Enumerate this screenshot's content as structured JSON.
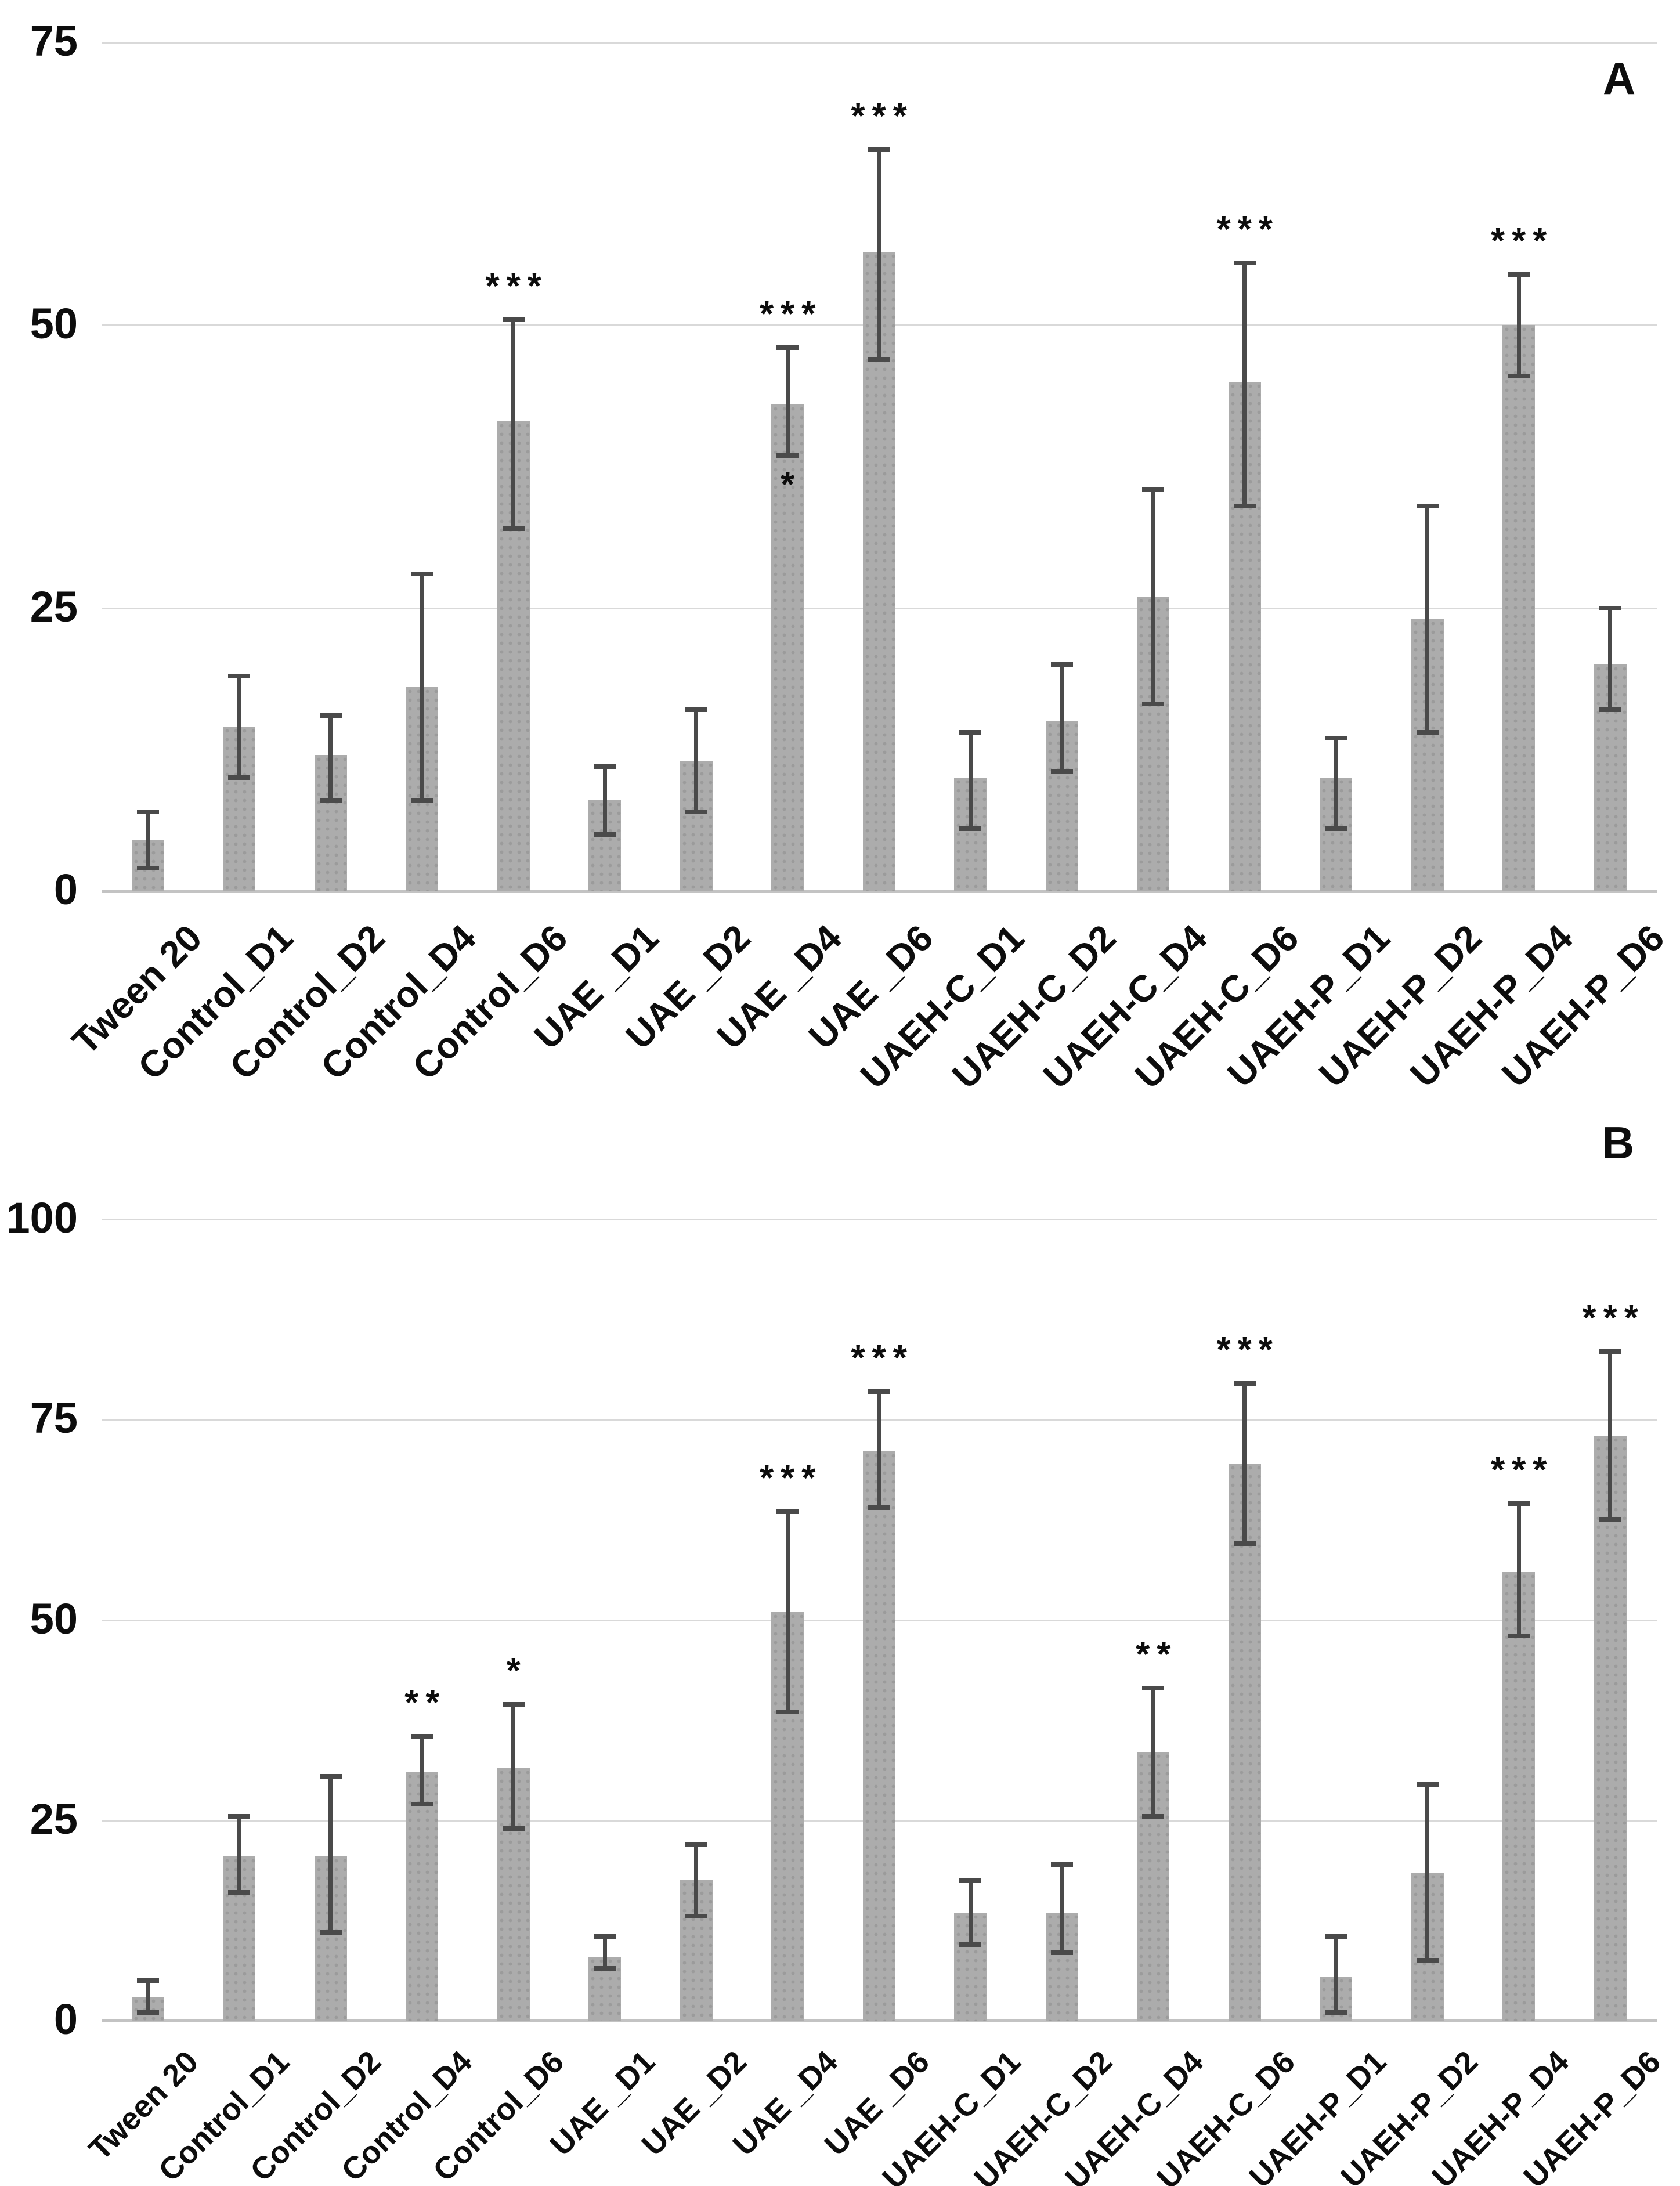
{
  "figure_title": "",
  "panel_letters": {
    "a": "A",
    "b": "B"
  },
  "style": {
    "bar_color": "#acacac",
    "bar_dot_color": "#9b9b9b",
    "error_bar_color": "#4a4a4a",
    "gridline_color": "#d9d9d9",
    "axis_line_color": "#c3c3c3",
    "text_color": "#0d0d0d",
    "background": "#ffffff"
  },
  "chart_data": [
    {
      "type": "bar",
      "panel_label": "A",
      "title": "",
      "xlabel": "",
      "ylabel": "",
      "ylim": [
        0,
        75
      ],
      "yticks": [
        0,
        25,
        50,
        75
      ],
      "ytick_labels": [
        "0",
        "25",
        "50",
        "75"
      ],
      "grid": true,
      "legend": "none",
      "error_bars": "plus-minus",
      "categories": [
        "Tween 20",
        "Control_D1",
        "Control_D2",
        "Control_D4",
        "Control_D6",
        "UAE _D1",
        "UAE _D2",
        "UAE _D4",
        "UAE _D6",
        "UAEH-C_D1",
        "UAEH-C_D2",
        "UAEH-C_D4",
        "UAEH-C_D6",
        "UAEH-P_D1",
        "UAEH-P_D2",
        "UAEH-P_D4",
        "UAEH-P_D6"
      ],
      "values": [
        4.5,
        14.5,
        12,
        18,
        41.5,
        8,
        11.5,
        43,
        56.5,
        10,
        15,
        26,
        45,
        10,
        24,
        50,
        20
      ],
      "error_low": [
        2,
        10,
        8,
        8,
        32,
        5,
        7,
        38.5,
        47,
        5.5,
        10.5,
        16.5,
        34,
        5.5,
        14,
        45.5,
        16
      ],
      "error_high": [
        7,
        19,
        15.5,
        28,
        50.5,
        11,
        16,
        48,
        65.5,
        14,
        20,
        35.5,
        55.5,
        13.5,
        34,
        54.5,
        25
      ],
      "significance": [
        "",
        "",
        "",
        "",
        "***",
        "",
        "",
        "***",
        "***",
        "",
        "",
        "",
        "***",
        "",
        "",
        "***",
        ""
      ],
      "significance_below": [
        "",
        "",
        "",
        "",
        "",
        "",
        "",
        "*",
        "",
        "",
        "",
        "",
        "",
        "",
        "",
        "",
        ""
      ]
    },
    {
      "type": "bar",
      "panel_label": "B",
      "title": "",
      "xlabel": "",
      "ylabel": "",
      "ylim": [
        0,
        100
      ],
      "yticks": [
        0,
        25,
        50,
        75,
        100
      ],
      "ytick_labels": [
        "0",
        "25",
        "50",
        "75",
        "100"
      ],
      "grid": true,
      "legend": "none",
      "error_bars": "plus-minus",
      "categories": [
        "Tween 20",
        "Control_D1",
        "Control_D2",
        "Control_D4",
        "Control_D6",
        "UAE _D1",
        "UAE _D2",
        "UAE _D4",
        "UAE _D6",
        "UAEH-C_D1",
        "UAEH-C_D2",
        "UAEH-C_D4",
        "UAEH-C_D6",
        "UAEH-P_D1",
        "UAEH-P_D2",
        "UAEH-P_D4",
        "UAEH-P_D6"
      ],
      "values": [
        3,
        20.5,
        20.5,
        31,
        31.5,
        8,
        17.5,
        51,
        71,
        13.5,
        13.5,
        33.5,
        69.5,
        5.5,
        18.5,
        56,
        73
      ],
      "error_low": [
        1,
        16,
        11,
        27,
        24,
        6.5,
        13,
        38.5,
        64,
        9.5,
        8.5,
        25.5,
        59.5,
        1,
        7.5,
        48,
        62.5
      ],
      "error_high": [
        5,
        25.5,
        30.5,
        35.5,
        39.5,
        10.5,
        22,
        63.5,
        78.5,
        17.5,
        19.5,
        41.5,
        79.5,
        10.5,
        29.5,
        64.5,
        83.5
      ],
      "significance": [
        "",
        "",
        "",
        "**",
        "*",
        "",
        "",
        "***",
        "***",
        "",
        "",
        "**",
        "***",
        "",
        "",
        "***",
        "***"
      ],
      "significance_below": [
        "",
        "",
        "",
        "",
        "",
        "",
        "",
        "",
        "",
        "",
        "",
        "",
        "",
        "",
        "",
        "",
        ""
      ]
    }
  ]
}
